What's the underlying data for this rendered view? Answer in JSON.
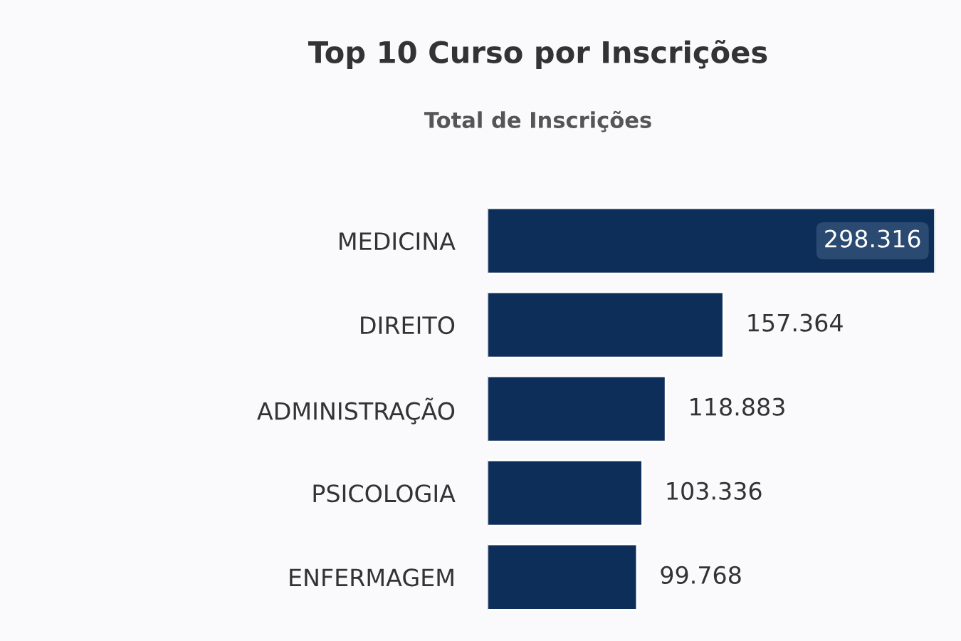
{
  "chart_data": {
    "type": "bar",
    "orientation": "horizontal",
    "title": "Top 10 Curso por Inscrições",
    "subtitle": "Total de Inscrições",
    "categories": [
      "MEDICINA",
      "DIREITO",
      "ADMINISTRAÇÃO",
      "PSICOLOGIA",
      "ENFERMAGEM"
    ],
    "values": [
      298316,
      157364,
      118883,
      103336,
      99768
    ],
    "value_labels": [
      "298.316",
      "157.364",
      "118.883",
      "103.336",
      "99.768"
    ],
    "color": "#0e2e5a",
    "grid": false,
    "legend": false
  }
}
